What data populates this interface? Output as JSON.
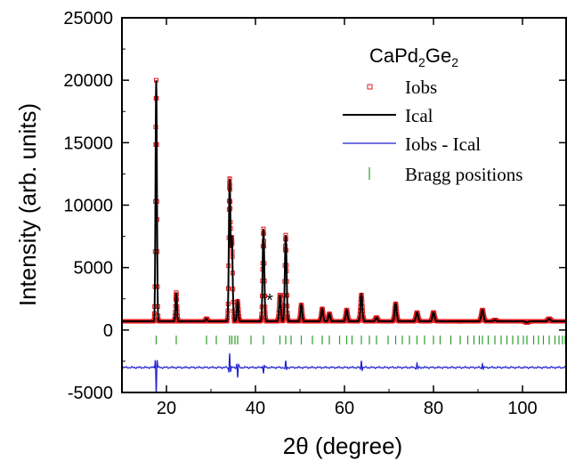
{
  "chart_data": {
    "type": "line",
    "title": "",
    "xlabel": "2θ (degree)",
    "ylabel": "Intensity (arb. units)",
    "xlim": [
      10,
      110
    ],
    "ylim": [
      -5000,
      25000
    ],
    "x_ticks": [
      20,
      40,
      60,
      80,
      100
    ],
    "y_ticks": [
      -5000,
      0,
      5000,
      10000,
      15000,
      20000,
      25000
    ],
    "grid": false,
    "legend": {
      "position": "top-right",
      "title_parts": {
        "a": "CaPd",
        "s1": "2",
        "b": "Ge",
        "s2": "2"
      },
      "entries": [
        "Iobs",
        "Ical",
        "Iobs - Ical",
        "Bragg positions"
      ]
    },
    "colors": {
      "Iobs": "#e41a1c",
      "Ical": "#000000",
      "Iobs - Ical": "#1f1fd0",
      "Bragg positions": "#2ca02c"
    },
    "annotations": [
      {
        "text": "*",
        "x": 43.2,
        "y": 1900
      }
    ],
    "background": 700,
    "peaks": [
      {
        "x": 17.7,
        "y": 20000
      },
      {
        "x": 22.2,
        "y": 3000
      },
      {
        "x": 29.0,
        "y": 900
      },
      {
        "x": 34.2,
        "y": 12000
      },
      {
        "x": 34.7,
        "y": 7200
      },
      {
        "x": 36.0,
        "y": 2300
      },
      {
        "x": 41.8,
        "y": 8100
      },
      {
        "x": 45.5,
        "y": 2800
      },
      {
        "x": 46.8,
        "y": 7600
      },
      {
        "x": 50.3,
        "y": 2000
      },
      {
        "x": 55.0,
        "y": 1700
      },
      {
        "x": 56.6,
        "y": 1300
      },
      {
        "x": 60.5,
        "y": 1600
      },
      {
        "x": 63.8,
        "y": 2800
      },
      {
        "x": 67.2,
        "y": 1000
      },
      {
        "x": 71.5,
        "y": 2100
      },
      {
        "x": 76.3,
        "y": 1400
      },
      {
        "x": 80.0,
        "y": 1400
      },
      {
        "x": 86.0,
        "y": 700
      },
      {
        "x": 91.0,
        "y": 1600
      },
      {
        "x": 93.8,
        "y": 800
      },
      {
        "x": 101.0,
        "y": 600
      },
      {
        "x": 106.0,
        "y": 900
      }
    ],
    "difference_baseline": -3000,
    "difference_features": [
      {
        "x": 17.7,
        "amp": -2200
      },
      {
        "x": 34.2,
        "amp": 1200
      },
      {
        "x": 36.0,
        "amp": -800
      },
      {
        "x": 41.8,
        "amp": -500
      },
      {
        "x": 46.8,
        "amp": 500
      },
      {
        "x": 63.8,
        "amp": 600
      },
      {
        "x": 76.3,
        "amp": 300
      },
      {
        "x": 91.0,
        "amp": 350
      }
    ],
    "bragg_y": -800,
    "bragg_positions": [
      17.7,
      22.2,
      29.0,
      31.2,
      34.2,
      34.7,
      35.4,
      36.0,
      39.0,
      41.8,
      45.5,
      46.8,
      48.0,
      50.3,
      52.8,
      55.0,
      56.6,
      58.9,
      60.5,
      61.7,
      63.8,
      65.6,
      67.2,
      69.8,
      71.5,
      73.0,
      74.6,
      76.3,
      78.0,
      80.0,
      81.5,
      83.9,
      86.0,
      87.7,
      89.1,
      90.3,
      91.0,
      92.3,
      93.8,
      95.2,
      96.5,
      97.8,
      99.0,
      100.2,
      101.0,
      102.5,
      103.6,
      104.7,
      106.0,
      107.3,
      108.2,
      109.0,
      109.6
    ]
  }
}
